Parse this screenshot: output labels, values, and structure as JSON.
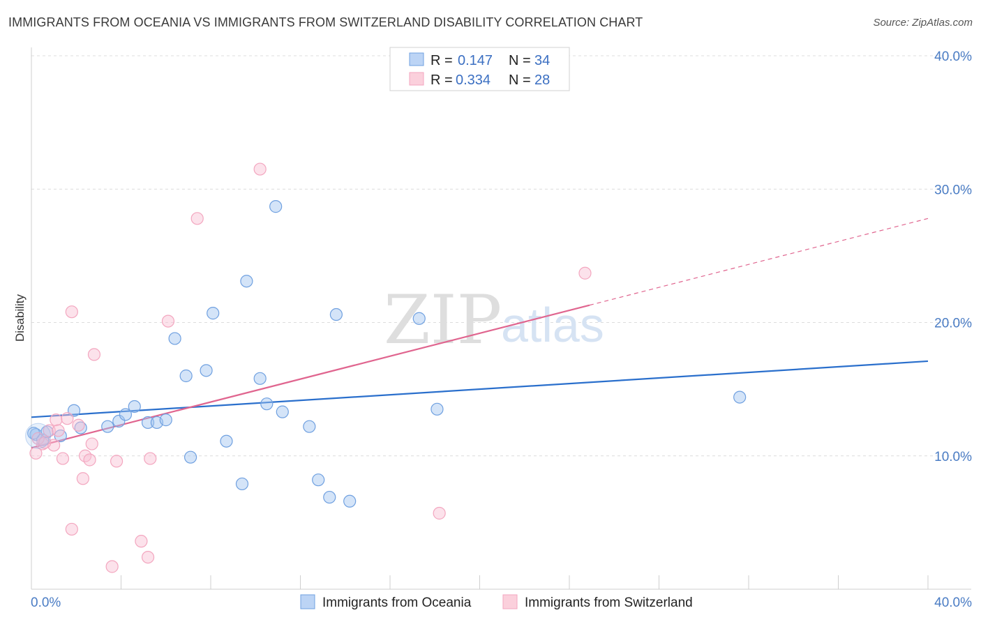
{
  "title": "IMMIGRANTS FROM OCEANIA VS IMMIGRANTS FROM SWITZERLAND DISABILITY CORRELATION CHART",
  "source": "Source: ZipAtlas.com",
  "watermark": {
    "zip": "ZIP",
    "atlas": "atlas"
  },
  "chart_data": {
    "type": "scatter",
    "title": "IMMIGRANTS FROM OCEANIA VS IMMIGRANTS FROM SWITZERLAND DISABILITY CORRELATION CHART",
    "xlabel": "",
    "ylabel": "Disability",
    "xlim": [
      0,
      40
    ],
    "ylim": [
      0,
      40
    ],
    "x_tick_labels": [
      "0.0%",
      "40.0%"
    ],
    "y_ticks": [
      {
        "value": 10,
        "label": "10.0%"
      },
      {
        "value": 20,
        "label": "20.0%"
      },
      {
        "value": 30,
        "label": "30.0%"
      },
      {
        "value": 40,
        "label": "40.0%"
      }
    ],
    "grid": "horizontal dashed",
    "legend_position": "top-center",
    "series": [
      {
        "name": "Immigrants from Oceania",
        "color": "#6fa0e0",
        "line_color": "#2a6fcc",
        "stats": {
          "r_label": "R =",
          "r": "0.147",
          "n_label": "N =",
          "n": "34"
        },
        "trend": {
          "x0": 0,
          "y0": 12.9,
          "x1": 40,
          "y1": 17.1,
          "dashed_after": null
        },
        "points": [
          [
            0.2,
            11.6
          ],
          [
            0.5,
            11.2
          ],
          [
            0.7,
            11.8
          ],
          [
            1.3,
            11.5
          ],
          [
            1.9,
            13.4
          ],
          [
            2.2,
            12.1
          ],
          [
            3.4,
            12.2
          ],
          [
            3.9,
            12.6
          ],
          [
            4.2,
            13.1
          ],
          [
            4.6,
            13.7
          ],
          [
            5.2,
            12.5
          ],
          [
            5.6,
            12.5
          ],
          [
            6.0,
            12.7
          ],
          [
            6.4,
            18.8
          ],
          [
            7.1,
            9.9
          ],
          [
            6.9,
            16.0
          ],
          [
            7.8,
            16.4
          ],
          [
            8.1,
            20.7
          ],
          [
            8.7,
            11.1
          ],
          [
            9.4,
            7.9
          ],
          [
            9.6,
            23.1
          ],
          [
            10.2,
            15.8
          ],
          [
            10.5,
            13.9
          ],
          [
            10.9,
            28.7
          ],
          [
            11.2,
            13.3
          ],
          [
            12.4,
            12.2
          ],
          [
            12.8,
            8.2
          ],
          [
            13.3,
            6.9
          ],
          [
            13.6,
            20.6
          ],
          [
            14.2,
            6.6
          ],
          [
            17.3,
            20.3
          ],
          [
            18.1,
            13.5
          ],
          [
            31.6,
            14.4
          ],
          [
            0.1,
            11.7
          ]
        ]
      },
      {
        "name": "Immigrants from Switzerland",
        "color": "#f3a6bf",
        "line_color": "#e0658f",
        "stats": {
          "r_label": "R =",
          "r": "0.334",
          "n_label": "N =",
          "n": "28"
        },
        "trend": {
          "x0": 0,
          "y0": 10.6,
          "x1": 24.9,
          "y1": 21.3,
          "dashed_to_x": 40,
          "dashed_to_y": 27.8
        },
        "points": [
          [
            0.2,
            10.2
          ],
          [
            0.5,
            10.9
          ],
          [
            0.8,
            11.9
          ],
          [
            1.0,
            10.8
          ],
          [
            1.1,
            12.7
          ],
          [
            1.2,
            11.9
          ],
          [
            1.4,
            9.8
          ],
          [
            1.6,
            12.8
          ],
          [
            1.8,
            20.8
          ],
          [
            2.1,
            12.3
          ],
          [
            2.3,
            8.3
          ],
          [
            2.4,
            10.0
          ],
          [
            2.6,
            9.7
          ],
          [
            2.7,
            10.9
          ],
          [
            2.8,
            17.6
          ],
          [
            3.6,
            1.7
          ],
          [
            3.8,
            9.6
          ],
          [
            4.9,
            3.6
          ],
          [
            5.2,
            2.4
          ],
          [
            5.3,
            9.8
          ],
          [
            6.1,
            20.1
          ],
          [
            7.4,
            27.8
          ],
          [
            10.2,
            31.5
          ],
          [
            18.2,
            5.7
          ],
          [
            24.7,
            23.7
          ],
          [
            1.8,
            4.5
          ],
          [
            0.3,
            11.3
          ],
          [
            0.6,
            11.0
          ]
        ]
      }
    ]
  },
  "bottom_legend": [
    "Immigrants from Oceania",
    "Immigrants from Switzerland"
  ]
}
